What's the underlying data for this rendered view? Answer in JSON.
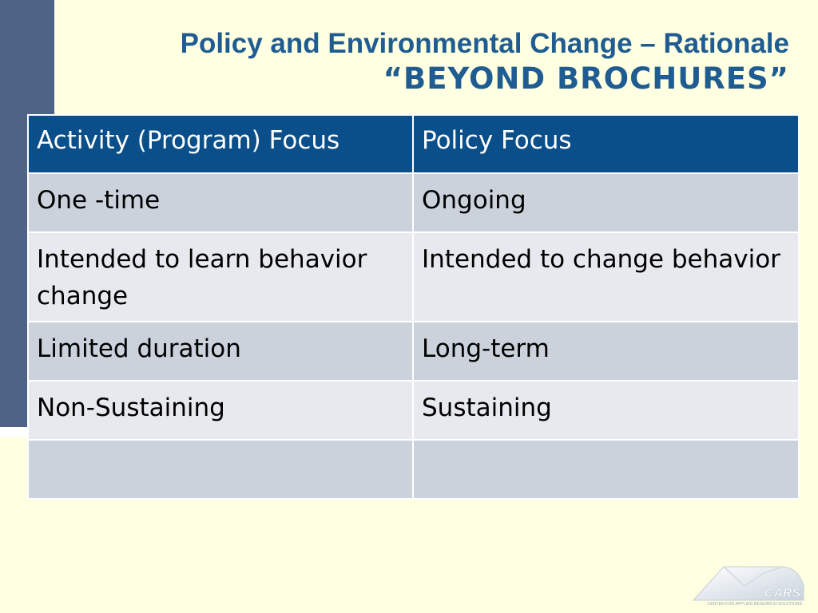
{
  "title": {
    "line1": "Policy and Environmental Change – Rationale",
    "line2": "“BEYOND BROCHURES”"
  },
  "table": {
    "headers": [
      "Activity (Program) Focus",
      "Policy Focus"
    ],
    "rows": [
      [
        "One -time",
        "Ongoing"
      ],
      [
        "Intended to learn behavior change",
        "Intended to change behavior"
      ],
      [
        "Limited duration",
        "Long-term"
      ],
      [
        "Non-Sustaining",
        "Sustaining"
      ],
      [
        "",
        ""
      ]
    ]
  },
  "logo": {
    "name": "CARS",
    "tagline": "CENTER FOR APPLIED RESEARCH SOLUTIONS"
  },
  "colors": {
    "title": "#1f5c92",
    "header_bg": "#0a4f89",
    "row_dark": "#cbd2dc",
    "row_light": "#e7e9ee",
    "page_bg": "#ffffe1",
    "side_bar": "#4f6387"
  }
}
